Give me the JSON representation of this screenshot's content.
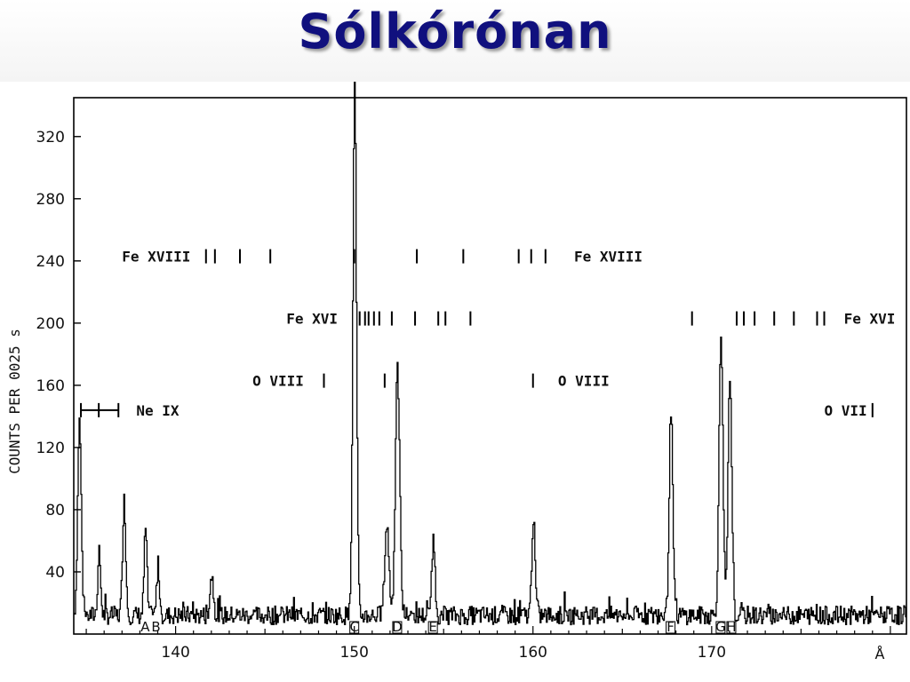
{
  "slide": {
    "title": "Sólkórónan"
  },
  "chart_data": {
    "type": "line",
    "title": "",
    "xlabel": "Å",
    "ylabel": "COUNTS PER 0025 s",
    "xlim": [
      134.3,
      180.9
    ],
    "ylim": [
      0,
      345
    ],
    "x_ticks": [
      {
        "value": 140,
        "label": "140"
      },
      {
        "value": 150,
        "label": "150"
      },
      {
        "value": 160,
        "label": "160"
      },
      {
        "value": 170,
        "label": "170"
      }
    ],
    "y_ticks": [
      {
        "value": 40,
        "label": "40"
      },
      {
        "value": 80,
        "label": "80"
      },
      {
        "value": 120,
        "label": "120"
      },
      {
        "value": 160,
        "label": "160"
      },
      {
        "value": 200,
        "label": "200"
      },
      {
        "value": 240,
        "label": "240"
      },
      {
        "value": 280,
        "label": "280"
      },
      {
        "value": 320,
        "label": "320"
      }
    ],
    "grid": false,
    "baseline": 12,
    "peaks": [
      {
        "x": 134.6,
        "y": 125,
        "w": 0.1
      },
      {
        "x": 135.7,
        "y": 40,
        "w": 0.08
      },
      {
        "x": 137.1,
        "y": 74,
        "w": 0.09
      },
      {
        "x": 138.3,
        "y": 56,
        "w": 0.08
      },
      {
        "x": 139.0,
        "y": 32,
        "w": 0.08
      },
      {
        "x": 142.0,
        "y": 26,
        "w": 0.1
      },
      {
        "x": 150.0,
        "y": 340,
        "w": 0.1
      },
      {
        "x": 151.8,
        "y": 58,
        "w": 0.12
      },
      {
        "x": 152.4,
        "y": 157,
        "w": 0.12
      },
      {
        "x": 154.4,
        "y": 49,
        "w": 0.09
      },
      {
        "x": 160.0,
        "y": 63,
        "w": 0.09
      },
      {
        "x": 167.7,
        "y": 133,
        "w": 0.1
      },
      {
        "x": 170.5,
        "y": 178,
        "w": 0.11
      },
      {
        "x": 171.0,
        "y": 153,
        "w": 0.1
      }
    ],
    "peak_labels": [
      {
        "x": 138.3,
        "label": "A"
      },
      {
        "x": 138.9,
        "label": "B"
      },
      {
        "x": 150.0,
        "label": "C"
      },
      {
        "x": 152.4,
        "label": "D"
      },
      {
        "x": 154.4,
        "label": "E"
      },
      {
        "x": 167.7,
        "label": "F"
      },
      {
        "x": 170.5,
        "label": "G"
      },
      {
        "x": 171.1,
        "label": "H"
      }
    ],
    "line_id_rows": [
      {
        "ion": "Fe XVIII",
        "y": 243,
        "labels": [
          {
            "x": 137.0,
            "label": "Fe XVIII"
          },
          {
            "x": 162.3,
            "label": "Fe XVIII"
          }
        ],
        "ticks": [
          141.7,
          142.2,
          143.6,
          145.3,
          150.0,
          153.5,
          156.1,
          159.2,
          159.9,
          160.7
        ]
      },
      {
        "ion": "Fe XVI",
        "y": 203,
        "labels": [
          {
            "x": 146.2,
            "label": "Fe XVI"
          },
          {
            "x": 177.4,
            "label": "Fe XVI"
          }
        ],
        "ticks": [
          150.3,
          150.6,
          150.8,
          151.1,
          151.4,
          152.1,
          153.4,
          154.7,
          155.1,
          156.5,
          168.9,
          171.4,
          171.8,
          172.4,
          173.5,
          174.6,
          175.9,
          176.3
        ]
      },
      {
        "ion": "O VIII",
        "y": 163,
        "labels": [
          {
            "x": 144.3,
            "label": "O VIII"
          },
          {
            "x": 161.4,
            "label": "O VIII"
          }
        ],
        "ticks": [
          148.3,
          151.7,
          160.0
        ]
      },
      {
        "ion": "O VII",
        "y": 144,
        "labels": [
          {
            "x": 176.3,
            "label": "O VII"
          }
        ],
        "ticks": [
          179.0
        ]
      },
      {
        "ion": "Ne IX",
        "y": 144,
        "labels": [
          {
            "x": 137.8,
            "label": "Ne IX"
          }
        ],
        "ticks": [
          134.7,
          135.7,
          136.8
        ]
      }
    ]
  }
}
